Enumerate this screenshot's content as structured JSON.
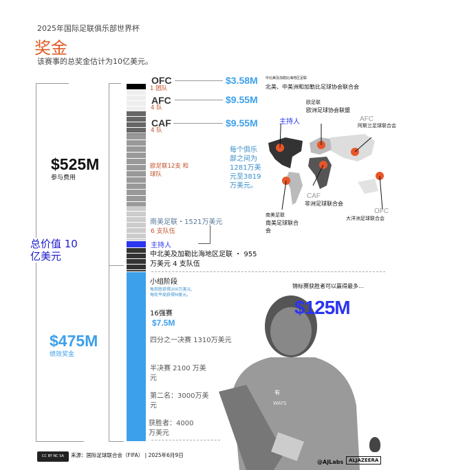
{
  "header": {
    "supertitle": "2025年国际足联俱乐部世界杯",
    "title": "奖金",
    "subtitle": "该赛事的总奖金估计为10亿美元。"
  },
  "totals": {
    "total_label": "总价值 10 亿美元",
    "participation_amount": "$525M",
    "participation_label": "参与费用",
    "performance_amount": "$475M",
    "performance_label": "绩效奖金"
  },
  "confederations": [
    {
      "code": "OFC",
      "amount": "$3.58M",
      "teams": "1 团队"
    },
    {
      "code": "AFC",
      "amount": "$9.55M",
      "teams": "4 队"
    },
    {
      "code": "CAF",
      "amount": "$9.55M",
      "teams": "4 队"
    }
  ],
  "uefa_label": "欧足联12支 和 球队",
  "per_club_note": "每个俱乐部之间为1281万美元至3819万美元。",
  "conmebol": {
    "label": "南美足联・1521万美元",
    "teams": "6 支队伍"
  },
  "host_label": "主持人",
  "concacaf_label": "中北美及加勒比海地区足联 ・ 955万美元 4 支队伍",
  "stages": {
    "group": "小组阶段",
    "group_note_1": "每获胜获得200万美元,",
    "group_note_2": "每轮平局获得M美元。",
    "r16": "16强赛",
    "r16_amount": "$7.5M",
    "qf": "四分之一决赛 1310万美元",
    "sf": "半决赛 2100 万美元",
    "runner_up": "第二名：3000万美元",
    "winner": "获胜者：4000万美元"
  },
  "map": {
    "concacaf_small": "中北美及加勒比海地区足联",
    "concacaf": "北美、中美洲和加勒比足球协会联合会",
    "host": "主持人",
    "uefa_small": "欧足联",
    "uefa": "欧洲足球协会联盟",
    "afc_code": "AFC",
    "afc": "阿斯兰足球联合会",
    "caf_code": "CAF",
    "caf": "非洲足球联合会",
    "conmebol_small": "南美足联",
    "conmebol": "南美足球联合会",
    "ofc_code": "OFC",
    "ofc": "大洋洲足球联合会"
  },
  "winner_teaser": "锦标赛获胜者可以赢得最多...",
  "winner_max": "$125M",
  "photo_text": "有",
  "photo_shirt": "WAYS",
  "footer": {
    "source": "来源：国际足球联合会（FIFA） | 2025年6月9日",
    "handle": "@AJLabs",
    "brand": "ALJAZEERA",
    "license": "CC BY NC SA"
  },
  "colors": {
    "accent": "#e05a23",
    "blue": "#3da0ea",
    "host": "#2b35f0",
    "total": "#1a1acc",
    "pin": "#e8562a"
  }
}
